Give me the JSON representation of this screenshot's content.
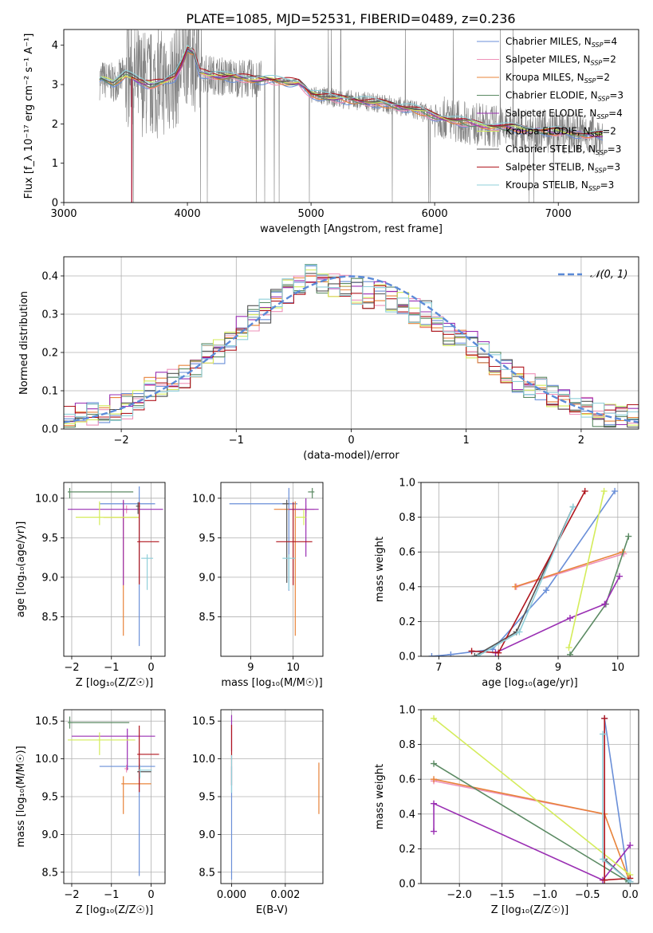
{
  "title": "PLATE=1085, MJD=52531, FIBERID=0489, z=0.236",
  "colors": {
    "Chabrier MILES": "#6a8fd8",
    "Salpeter MILES": "#ee90b8",
    "Kroupa MILES": "#e8833a",
    "Chabrier ELODIE": "#5b8a63",
    "Salpeter ELODIE": "#9a2fb3",
    "Kroupa ELODIE": "#d4ec5a",
    "Chabrier STELIB": "#555555",
    "Salpeter STELIB": "#b0161e",
    "Kroupa STELIB": "#8fcfd9"
  },
  "chart_data": [
    {
      "id": "spectrum",
      "type": "line",
      "xlabel": "wavelength [Angstrom, rest frame]",
      "ylabel": "Flux [f_λ 10⁻¹⁷ erg cm⁻² s⁻¹ A⁻¹]",
      "xlim": [
        3000,
        7650
      ],
      "ylim": [
        0,
        4.4
      ],
      "xticks": [
        3000,
        4000,
        5000,
        6000,
        7000
      ],
      "yticks": [
        0,
        1,
        2,
        3,
        4
      ],
      "legend_position": "top-right",
      "legend": [
        {
          "prefix": "Chabrier MILES, N",
          "sub": "SSP",
          "suffix": "=4",
          "series": "Chabrier MILES"
        },
        {
          "prefix": "Salpeter MILES, N",
          "sub": "SSP",
          "suffix": "=2",
          "series": "Salpeter MILES"
        },
        {
          "prefix": "Kroupa MILES, N",
          "sub": "SSP",
          "suffix": "=2",
          "series": "Kroupa MILES"
        },
        {
          "prefix": "Chabrier ELODIE, N",
          "sub": "SSP",
          "suffix": "=3",
          "series": "Chabrier ELODIE"
        },
        {
          "prefix": "Salpeter ELODIE, N",
          "sub": "SSP",
          "suffix": "=4",
          "series": "Salpeter ELODIE"
        },
        {
          "prefix": "Kroupa ELODIE, N",
          "sub": "SSP",
          "suffix": "=2",
          "series": "Kroupa ELODIE"
        },
        {
          "prefix": "Chabrier STELIB, N",
          "sub": "SSP",
          "suffix": "=3",
          "series": "Chabrier STELIB"
        },
        {
          "prefix": "Salpeter STELIB, N",
          "sub": "SSP",
          "suffix": "=3",
          "series": "Salpeter STELIB"
        },
        {
          "prefix": "Kroupa STELIB, N",
          "sub": "SSP",
          "suffix": "=3",
          "series": "Kroupa STELIB"
        }
      ],
      "data_range_angstrom": [
        3290,
        7360
      ],
      "continuum_model": {
        "x": [
          3260,
          3300,
          3400,
          3500,
          3600,
          3700,
          3800,
          3900,
          3950,
          4000,
          4050,
          4100,
          4300,
          4500,
          4700,
          4900,
          5000,
          5200,
          5500,
          5800,
          6000,
          6300,
          6600,
          6900,
          7200,
          7400
        ],
        "y": [
          2.95,
          3.15,
          3.05,
          3.25,
          3.1,
          3.0,
          3.05,
          3.2,
          3.5,
          3.9,
          3.8,
          3.3,
          3.2,
          3.15,
          3.1,
          3.05,
          2.75,
          2.65,
          2.55,
          2.4,
          2.2,
          2.0,
          1.9,
          1.82,
          1.75,
          1.7
        ]
      }
    },
    {
      "id": "residuals",
      "type": "step-histogram",
      "xlabel": "(data-model)/error",
      "ylabel": "Normed distribution",
      "xlim": [
        -2.5,
        2.5
      ],
      "ylim": [
        0,
        0.45
      ],
      "xticks": [
        -2,
        -1,
        0,
        1,
        2
      ],
      "yticks": [
        0.0,
        0.1,
        0.2,
        0.3,
        0.4
      ],
      "bin_width": 0.1,
      "bin_start": -2.5,
      "legend": {
        "label": "𝒩(0, 1)",
        "position": "top-right",
        "style": "dashed"
      },
      "series_base": [
        0.03,
        0.035,
        0.04,
        0.045,
        0.055,
        0.06,
        0.08,
        0.1,
        0.12,
        0.13,
        0.14,
        0.16,
        0.19,
        0.2,
        0.24,
        0.26,
        0.29,
        0.31,
        0.33,
        0.36,
        0.38,
        0.4,
        0.39,
        0.38,
        0.37,
        0.36,
        0.35,
        0.35,
        0.34,
        0.33,
        0.31,
        0.3,
        0.27,
        0.25,
        0.23,
        0.22,
        0.2,
        0.17,
        0.15,
        0.13,
        0.11,
        0.1,
        0.08,
        0.07,
        0.06,
        0.05,
        0.04,
        0.035,
        0.03,
        0.03
      ]
    },
    {
      "id": "age_vs_Z",
      "type": "errorbar",
      "xlabel": "Z [log₁₀(Z/Z☉)]",
      "ylabel": "age [log₁₀(age/yr)]",
      "xlim": [
        -2.2,
        0.35
      ],
      "ylim": [
        8.0,
        10.2
      ],
      "xticks": [
        -2,
        -1,
        0
      ],
      "yticks": [
        8.5,
        9.0,
        9.5,
        10.0
      ],
      "points": [
        {
          "s": "Chabrier MILES",
          "x": -0.3,
          "y": 9.93,
          "xe": [
            1.0,
            0.4
          ],
          "ye": [
            1.8,
            0.22
          ]
        },
        {
          "s": "Salpeter MILES",
          "x": -0.62,
          "y": 9.86,
          "xe": [
            0.05,
            0.05
          ],
          "ye": [
            0.05,
            0.05
          ]
        },
        {
          "s": "Kroupa MILES",
          "x": -0.7,
          "y": 9.76,
          "xe": [
            0.5,
            0.4
          ],
          "ye": [
            1.5,
            0.2
          ]
        },
        {
          "s": "Chabrier ELODIE",
          "x": -2.05,
          "y": 10.08,
          "xe": [
            0.05,
            1.6
          ],
          "ye": [
            0.08,
            0.05
          ]
        },
        {
          "s": "Salpeter ELODIE",
          "x": -0.7,
          "y": 9.86,
          "xe": [
            1.4,
            1.0
          ],
          "ye": [
            0.96,
            0.12
          ]
        },
        {
          "s": "Kroupa ELODIE",
          "x": -1.3,
          "y": 9.76,
          "xe": [
            0.6,
            1.0
          ],
          "ye": [
            0.1,
            0.2
          ]
        },
        {
          "s": "Chabrier STELIB",
          "x": -0.33,
          "y": 9.9,
          "xe": [
            0.05,
            0.05
          ],
          "ye": [
            0.1,
            0.05
          ]
        },
        {
          "s": "Salpeter STELIB",
          "x": -0.3,
          "y": 9.45,
          "xe": [
            0.05,
            0.5
          ],
          "ye": [
            0.54,
            0.5
          ]
        },
        {
          "s": "Kroupa STELIB",
          "x": -0.1,
          "y": 9.24,
          "xe": [
            0.15,
            0.15
          ],
          "ye": [
            0.4,
            0.05
          ]
        }
      ]
    },
    {
      "id": "age_vs_mass",
      "type": "errorbar",
      "xlabel": "mass [log₁₀(M/M☉)]",
      "ylabel": "",
      "xlim": [
        8.3,
        10.7
      ],
      "ylim": [
        8.0,
        10.2
      ],
      "xticks": [
        9,
        10
      ],
      "yticks": [
        8.5,
        9.0,
        9.5,
        10.0
      ],
      "points": [
        {
          "s": "Chabrier MILES",
          "x": 9.9,
          "y": 9.93,
          "xe": [
            1.4,
            0.2
          ],
          "ye": [
            1.1,
            0.2
          ]
        },
        {
          "s": "Salpeter MILES",
          "x": 10.3,
          "y": 9.86,
          "xe": [
            0.5,
            0.2
          ],
          "ye": [
            0.05,
            0.05
          ]
        },
        {
          "s": "Kroupa MILES",
          "x": 10.05,
          "y": 9.86,
          "xe": [
            0.5,
            0.25
          ],
          "ye": [
            1.6,
            0.1
          ]
        },
        {
          "s": "Chabrier ELODIE",
          "x": 10.45,
          "y": 10.08,
          "xe": [
            0.1,
            0.05
          ],
          "ye": [
            0.08,
            0.05
          ]
        },
        {
          "s": "Salpeter ELODIE",
          "x": 10.3,
          "y": 9.86,
          "xe": [
            0.4,
            0.3
          ],
          "ye": [
            0.6,
            0.14
          ]
        },
        {
          "s": "Kroupa ELODIE",
          "x": 10.25,
          "y": 9.76,
          "xe": [
            0.2,
            0.05
          ],
          "ye": [
            0.1,
            0.1
          ]
        },
        {
          "s": "Chabrier STELIB",
          "x": 9.85,
          "y": 9.93,
          "xe": [
            0.1,
            0.05
          ],
          "ye": [
            1.0,
            0.05
          ]
        },
        {
          "s": "Salpeter STELIB",
          "x": 10.0,
          "y": 9.45,
          "xe": [
            0.4,
            0.45
          ],
          "ye": [
            0.55,
            0.5
          ]
        },
        {
          "s": "Kroupa STELIB",
          "x": 9.9,
          "y": 9.24,
          "xe": [
            0.15,
            0.15
          ],
          "ye": [
            0.4,
            0.05
          ]
        }
      ]
    },
    {
      "id": "weight_vs_age",
      "type": "line",
      "xlabel": "age [log₁₀(age/yr)]",
      "ylabel": "mass weight",
      "xlim": [
        6.7,
        10.35
      ],
      "ylim": [
        0,
        1.0
      ],
      "xticks": [
        7,
        8,
        9,
        10
      ],
      "yticks": [
        0.0,
        0.2,
        0.4,
        0.6,
        0.8,
        1.0
      ],
      "grid": true,
      "series": [
        {
          "s": "Chabrier MILES",
          "x": [
            6.88,
            7.2,
            7.9,
            8.8,
            9.95
          ],
          "y": [
            0.0,
            0.01,
            0.04,
            0.38,
            0.95
          ]
        },
        {
          "s": "Salpeter MILES",
          "x": [
            8.3,
            10.1
          ],
          "y": [
            0.4,
            0.59
          ]
        },
        {
          "s": "Kroupa MILES",
          "x": [
            8.28,
            10.08
          ],
          "y": [
            0.4,
            0.6
          ]
        },
        {
          "s": "Chabrier ELODIE",
          "x": [
            9.2,
            9.8,
            10.18
          ],
          "y": [
            0.01,
            0.3,
            0.69
          ]
        },
        {
          "s": "Salpeter ELODIE",
          "x": [
            7.95,
            9.2,
            9.78,
            10.03
          ],
          "y": [
            0.02,
            0.22,
            0.3,
            0.46
          ]
        },
        {
          "s": "Kroupa ELODIE",
          "x": [
            9.18,
            9.77
          ],
          "y": [
            0.05,
            0.95
          ]
        },
        {
          "s": "Chabrier STELIB",
          "x": [
            7.6,
            8.3,
            9.25
          ],
          "y": [
            0.0,
            0.14,
            0.86
          ]
        },
        {
          "s": "Salpeter STELIB",
          "x": [
            7.55,
            8.0,
            9.45
          ],
          "y": [
            0.03,
            0.02,
            0.95
          ]
        },
        {
          "s": "Kroupa STELIB",
          "x": [
            7.65,
            8.35,
            9.25
          ],
          "y": [
            0.0,
            0.14,
            0.86
          ]
        }
      ]
    },
    {
      "id": "mass_vs_Z",
      "type": "errorbar",
      "xlabel": "Z [log₁₀(Z/Z☉)]",
      "ylabel": "mass [log₁₀(M/M☉)]",
      "xlim": [
        -2.2,
        0.35
      ],
      "ylim": [
        8.35,
        10.65
      ],
      "xticks": [
        -2,
        -1,
        0
      ],
      "yticks": [
        8.5,
        9.0,
        9.5,
        10.0,
        10.5
      ],
      "points": [
        {
          "s": "Chabrier MILES",
          "x": -0.3,
          "y": 9.9,
          "xe": [
            1.0,
            0.4
          ],
          "ye": [
            1.45,
            0.1
          ]
        },
        {
          "s": "Salpeter MILES",
          "x": -0.62,
          "y": 9.87,
          "xe": [
            0.05,
            0.05
          ],
          "ye": [
            0.05,
            0.05
          ]
        },
        {
          "s": "Kroupa MILES",
          "x": -0.7,
          "y": 9.67,
          "xe": [
            0.05,
            0.7
          ],
          "ye": [
            0.4,
            0.1
          ]
        },
        {
          "s": "Chabrier ELODIE",
          "x": -2.05,
          "y": 10.48,
          "xe": [
            0.05,
            1.5
          ],
          "ye": [
            0.08,
            0.08
          ]
        },
        {
          "s": "Salpeter ELODIE",
          "x": -0.6,
          "y": 10.3,
          "xe": [
            1.4,
            0.7
          ],
          "ye": [
            0.45,
            0.1
          ]
        },
        {
          "s": "Kroupa ELODIE",
          "x": -1.3,
          "y": 10.25,
          "xe": [
            0.8,
            0.9
          ],
          "ye": [
            0.2,
            0.1
          ]
        },
        {
          "s": "Chabrier STELIB",
          "x": -0.3,
          "y": 9.83,
          "xe": [
            0.05,
            0.3
          ],
          "ye": [
            0.1,
            0.1
          ]
        },
        {
          "s": "Salpeter STELIB",
          "x": -0.3,
          "y": 10.06,
          "xe": [
            0.05,
            0.5
          ],
          "ye": [
            0.5,
            0.38
          ]
        },
        {
          "s": "Kroupa STELIB",
          "x": -0.28,
          "y": 9.85,
          "xe": [
            0.05,
            0.3
          ],
          "ye": [
            0.1,
            0.05
          ]
        }
      ]
    },
    {
      "id": "mass_vs_ebv",
      "type": "errorbar",
      "xlabel": "E(B-V)",
      "ylabel": "",
      "xlim": [
        -0.0004,
        0.0034
      ],
      "ylim": [
        8.35,
        10.65
      ],
      "xticks": [
        0.0,
        0.002
      ],
      "xtick_labels": [
        "0.000",
        "0.002"
      ],
      "yticks": [
        8.5,
        9.0,
        9.5,
        10.0,
        10.5
      ],
      "points": [
        {
          "s": "Chabrier MILES",
          "x": 0.0,
          "y": 9.4,
          "xe": [
            0,
            0
          ],
          "ye": [
            1.0,
            0.5
          ]
        },
        {
          "s": "Salpeter ELODIE",
          "x": 0.0,
          "y": 10.3,
          "xe": [
            0,
            0
          ],
          "ye": [
            0.2,
            0.28
          ]
        },
        {
          "s": "Salpeter STELIB",
          "x": 0.0,
          "y": 9.95,
          "xe": [
            0,
            0
          ],
          "ye": [
            0.3,
            0.5
          ]
        },
        {
          "s": "Kroupa STELIB",
          "x": 0.0,
          "y": 9.85,
          "xe": [
            0,
            0
          ],
          "ye": [
            0.3,
            0.2
          ]
        },
        {
          "s": "Kroupa MILES",
          "x": 0.00325,
          "y": 9.62,
          "xe": [
            0,
            0
          ],
          "ye": [
            0.35,
            0.33
          ]
        }
      ]
    },
    {
      "id": "weight_vs_Z",
      "type": "line",
      "xlabel": "Z [log₁₀(Z/Z☉)]",
      "ylabel": "mass weight",
      "xlim": [
        -2.45,
        0.1
      ],
      "ylim": [
        0,
        1.0
      ],
      "xticks": [
        -2.0,
        -1.5,
        -1.0,
        -0.5,
        0.0
      ],
      "yticks": [
        0.0,
        0.2,
        0.4,
        0.6,
        0.8,
        1.0
      ],
      "grid": true,
      "series": [
        {
          "s": "Chabrier MILES",
          "x": [
            -0.3,
            -0.02
          ],
          "y": [
            0.95,
            0.02
          ]
        },
        {
          "s": "Salpeter MILES",
          "x": [
            -2.3,
            -0.3
          ],
          "y": [
            0.59,
            0.4
          ]
        },
        {
          "s": "Kroupa MILES",
          "x": [
            -2.3,
            -0.3,
            -0.02
          ],
          "y": [
            0.6,
            0.4,
            0.03
          ]
        },
        {
          "s": "Chabrier ELODIE",
          "x": [
            -2.3,
            -0.02
          ],
          "y": [
            0.69,
            0.01
          ]
        },
        {
          "s": "Salpeter ELODIE",
          "x": [
            -2.3,
            -2.3,
            -0.32,
            0.0
          ],
          "y": [
            0.3,
            0.46,
            0.02,
            0.22
          ]
        },
        {
          "s": "Kroupa ELODIE",
          "x": [
            -2.3,
            0.0
          ],
          "y": [
            0.95,
            0.05
          ]
        },
        {
          "s": "Chabrier STELIB",
          "x": [
            -0.3,
            0.0
          ],
          "y": [
            0.14,
            0.01
          ]
        },
        {
          "s": "Salpeter STELIB",
          "x": [
            -0.3,
            -0.3,
            0.0
          ],
          "y": [
            0.95,
            0.02,
            0.03
          ]
        },
        {
          "s": "Kroupa STELIB",
          "x": [
            -0.32,
            -0.32,
            0.0
          ],
          "y": [
            0.86,
            0.14,
            0.01
          ]
        }
      ]
    }
  ]
}
